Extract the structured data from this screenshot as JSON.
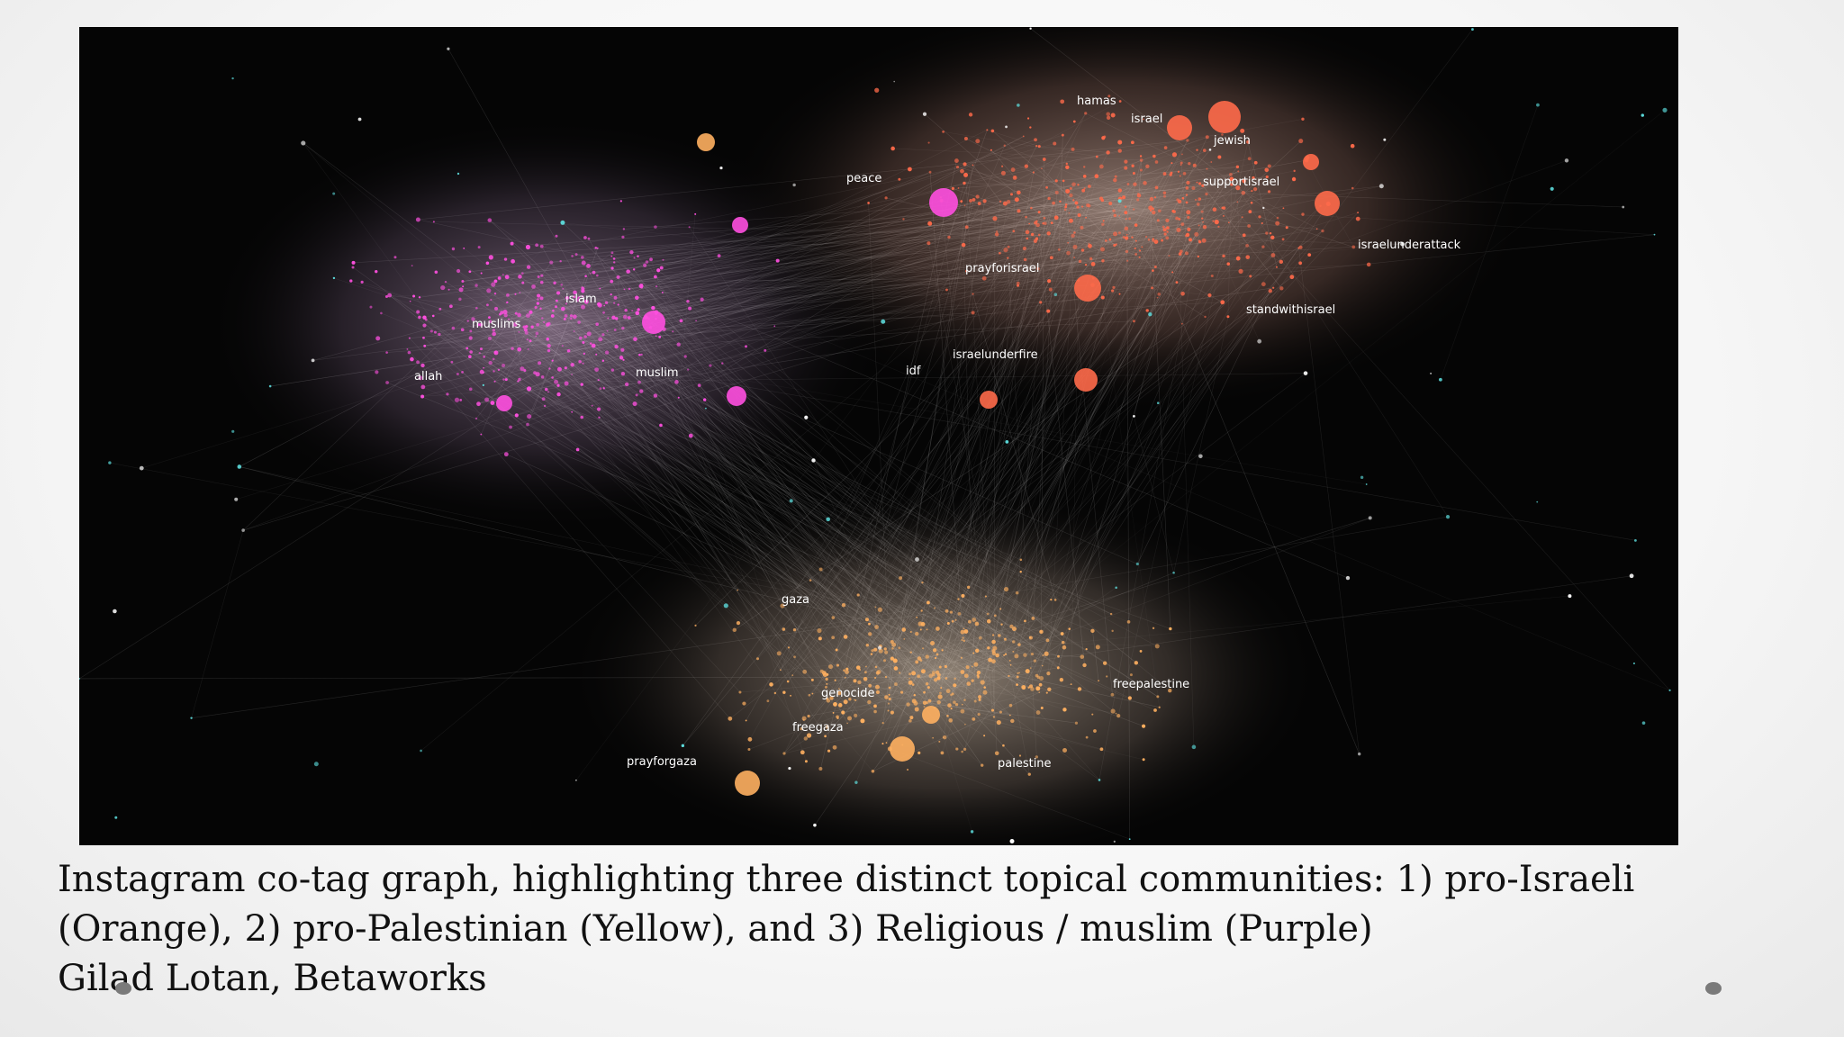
{
  "graph": {
    "labels": {
      "israel": "israel",
      "hamas": "hamas",
      "jewish": "jewish",
      "peace": "peace",
      "supportisrael": "supportisrael",
      "prayforisrael": "prayforisrael",
      "israelunderfire": "israelunderfire",
      "idf": "idf",
      "israelunderattack": "israelunderattack",
      "standwithisrael": "standwithisrael",
      "islam": "islam",
      "muslim": "muslim",
      "allah": "allah",
      "muslims": "muslims",
      "prayforgaza": "prayforgaza",
      "genocide": "genocide",
      "freegaza": "freegaza",
      "freepalestine": "freepalestine",
      "gaza": "gaza",
      "palestine": "palestine"
    },
    "colors": {
      "background": "#050505",
      "edges": "#9a9a9a",
      "israeli_cluster": "#ff6a4a",
      "palestinian_cluster": "#ffb060",
      "religious_cluster": "#ff4fe0",
      "misc_nodes": "#5ee0e0"
    }
  },
  "caption": {
    "line1": "Instagram co-tag graph, highlighting three distinct topical communities: 1) pro-Israeli",
    "line2": "(Orange), 2) pro-Palestinian (Yellow), and 3) Religious / muslim (Purple)",
    "line3": "Gilad Lotan, Betaworks"
  }
}
